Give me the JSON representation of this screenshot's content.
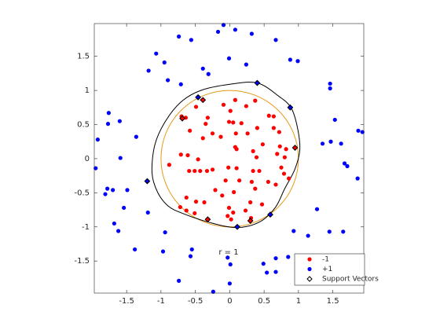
{
  "chart_data": {
    "type": "scatter",
    "xlim": [
      -1.97,
      1.95
    ],
    "ylim": [
      -1.97,
      1.98
    ],
    "xticks": [
      -1.5,
      -1,
      -0.5,
      0,
      0.5,
      1,
      1.5
    ],
    "yticks": [
      -1.5,
      -1,
      -0.5,
      0,
      0.5,
      1,
      1.5
    ],
    "legend": "southeast",
    "series": [
      {
        "name": "-1",
        "color": "#ff0000",
        "marker": "dot",
        "x": [
          -0.7,
          -0.64,
          -0.49,
          -0.35,
          -0.32,
          -0.09,
          0.08,
          0.24,
          0.37,
          0.57,
          0.64,
          0.01,
          -0.01,
          0.05,
          0.17,
          0.4,
          0.64,
          0.72,
          -0.58,
          -0.39,
          -0.25,
          -0.13,
          0.09,
          0.26,
          0.48,
          0.73,
          0.82,
          -0.71,
          -0.61,
          -0.46,
          0.08,
          0.1,
          0.34,
          0.39,
          0.69,
          0.8,
          -0.88,
          -0.59,
          -0.51,
          -0.43,
          -0.33,
          -0.25,
          -0.02,
          0.1,
          0.34,
          0.43,
          0.75,
          0.79,
          -0.06,
          0.14,
          0.32,
          0.56,
          0.86,
          -0.21,
          -0.11,
          0.06,
          0.37,
          0.67,
          -0.63,
          -0.49,
          -0.37,
          0.3,
          0.47,
          -0.72,
          -0.63,
          -0.01,
          0.23,
          -0.51,
          -0.03,
          0.05,
          0.02,
          0.31,
          -0.39,
          -0.69,
          0.95,
          0.3,
          -0.32
        ],
        "y": [
          0.62,
          0.6,
          0.76,
          0.51,
          0.6,
          0.79,
          0.86,
          0.77,
          0.85,
          0.63,
          0.62,
          0.7,
          0.54,
          0.53,
          0.52,
          0.45,
          0.45,
          0.39,
          0.41,
          0.3,
          0.37,
          0.32,
          0.37,
          0.37,
          0.21,
          0.18,
          0.14,
          0.06,
          0.05,
          -0.01,
          0.17,
          0.14,
          0.11,
          0.02,
          0.07,
          0.02,
          -0.09,
          -0.18,
          -0.18,
          -0.18,
          -0.18,
          -0.16,
          -0.13,
          -0.14,
          -0.18,
          -0.18,
          -0.13,
          -0.22,
          -0.32,
          -0.32,
          -0.34,
          -0.34,
          -0.29,
          -0.46,
          -0.54,
          -0.49,
          -0.44,
          -0.38,
          -0.57,
          -0.63,
          -0.64,
          -0.64,
          -0.67,
          -0.71,
          -0.76,
          -0.72,
          -0.76,
          -0.8,
          -0.84,
          -0.79,
          -0.89,
          -0.87,
          0.86,
          0.59,
          0.16,
          -0.91,
          -0.89
        ]
      },
      {
        "name": "+1",
        "color": "#0000ff",
        "marker": "dot",
        "x": [
          -0.09,
          -0.17,
          0.08,
          -0.74,
          -0.56,
          0.32,
          0.67,
          -1.07,
          0.88,
          -0.01,
          0.99,
          -0.95,
          -1.18,
          0.24,
          -0.39,
          -0.31,
          -0.9,
          1.46,
          1.46,
          -0.71,
          -1.76,
          -1.77,
          -1.6,
          1.53,
          -1.92,
          1.87,
          1.93,
          -1.36,
          1.35,
          1.47,
          1.62,
          -1.59,
          -1.95,
          1.67,
          1.71,
          -1.78,
          -1.7,
          -1.49,
          -1.81,
          1.86,
          -1.19,
          -1.54,
          1.27,
          -1.68,
          -1.62,
          -0.94,
          0.93,
          1.14,
          1.45,
          1.65,
          -1.38,
          -0.97,
          -0.55,
          -0.57,
          -0.03,
          0.01,
          0.67,
          0.85,
          0.49,
          0.54,
          0.67,
          -0.74,
          -0.24,
          0.0,
          -0.46,
          0.4,
          0.88,
          -1.2,
          0.59,
          0.11
        ],
        "y": [
          1.96,
          1.86,
          1.89,
          1.79,
          1.74,
          1.83,
          1.74,
          1.54,
          1.45,
          1.47,
          1.43,
          1.41,
          1.29,
          1.38,
          1.32,
          1.24,
          1.15,
          1.1,
          1.03,
          1.09,
          0.67,
          0.51,
          0.55,
          0.57,
          0.28,
          0.41,
          0.39,
          0.32,
          0.22,
          0.25,
          0.22,
          0.01,
          -0.14,
          -0.07,
          -0.11,
          -0.44,
          -0.46,
          -0.46,
          -0.52,
          -0.29,
          -0.79,
          -0.72,
          -0.74,
          -0.95,
          -1.06,
          -1.08,
          -1.06,
          -1.13,
          -1.07,
          -1.07,
          -1.33,
          -1.36,
          -1.33,
          -1.43,
          -1.45,
          -1.55,
          -1.46,
          -1.44,
          -1.54,
          -1.67,
          -1.66,
          -1.79,
          -1.95,
          -1.83,
          0.9,
          1.11,
          0.75,
          -0.33,
          -0.82,
          -1.0
        ]
      },
      {
        "name": "Support Vectors",
        "color": "#000000",
        "marker": "diamond",
        "x": [
          -0.46,
          -0.39,
          -0.69,
          0.4,
          0.88,
          0.95,
          -1.2,
          0.59,
          0.3,
          0.11,
          -0.32
        ],
        "y": [
          0.9,
          0.86,
          0.59,
          1.11,
          0.75,
          0.16,
          -0.33,
          -0.82,
          -0.91,
          -1.0,
          -0.89
        ]
      }
    ],
    "decision_boundary": {
      "color": "#000000",
      "x": [
        0,
        0.4,
        0.72,
        0.89,
        0.98,
        1.02,
        0.95,
        0.8,
        0.66,
        0.43,
        0.09,
        -0.31,
        -0.69,
        -0.9,
        -1.05,
        -1.13,
        -1.09,
        -0.94,
        -0.71,
        -0.42
      ],
      "y": [
        1.09,
        1.11,
        0.91,
        0.75,
        0.48,
        0.14,
        -0.15,
        -0.44,
        -0.72,
        -0.93,
        -1.01,
        -0.93,
        -0.8,
        -0.69,
        -0.49,
        -0.21,
        0.2,
        0.54,
        0.83,
        1.0
      ]
    },
    "circle": {
      "radius": 1,
      "center": [
        0,
        0
      ],
      "color": "#e69a1a"
    },
    "annotation": {
      "text": "r = 1",
      "x": -0.16,
      "y": -1.37
    }
  }
}
